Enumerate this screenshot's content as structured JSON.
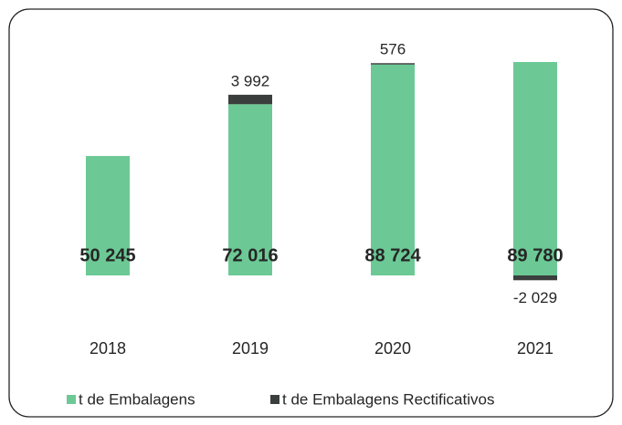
{
  "chart_data": {
    "type": "stacked_bar",
    "categories": [
      "2018",
      "2019",
      "2020",
      "2021"
    ],
    "series": [
      {
        "name": "t de Embalagens",
        "color": "#6cc995",
        "values": [
          50245,
          72016,
          88724,
          89780
        ],
        "value_labels": [
          "50 245",
          "72 016",
          "88 724",
          "89 780"
        ]
      },
      {
        "name": "t de Embalagens Rectificativos",
        "color": "#3a3f3d",
        "values": [
          null,
          3992,
          576,
          -2029
        ],
        "value_labels": [
          null,
          "3 992",
          "576",
          "-2 029"
        ]
      }
    ],
    "legend": "bottom"
  }
}
